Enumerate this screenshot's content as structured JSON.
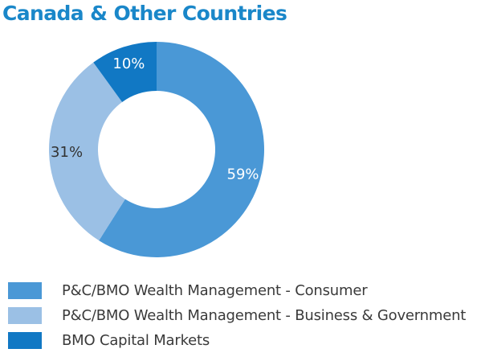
{
  "chart_data": {
    "type": "pie",
    "title": "Canada & Other Countries",
    "categories": [
      "P&C/BMO Wealth Management - Consumer",
      "P&C/BMO Wealth Management - Business & Government",
      "BMO Capital Markets"
    ],
    "values": [
      59,
      31,
      10
    ],
    "data_labels": [
      "59%",
      "31%",
      "10%"
    ],
    "colors": [
      "#4a98d6",
      "#9bc0e5",
      "#1178c4"
    ],
    "label_colors": [
      "#ffffff",
      "#333333",
      "#ffffff"
    ],
    "legend": "bottom-left",
    "style": "donut"
  }
}
